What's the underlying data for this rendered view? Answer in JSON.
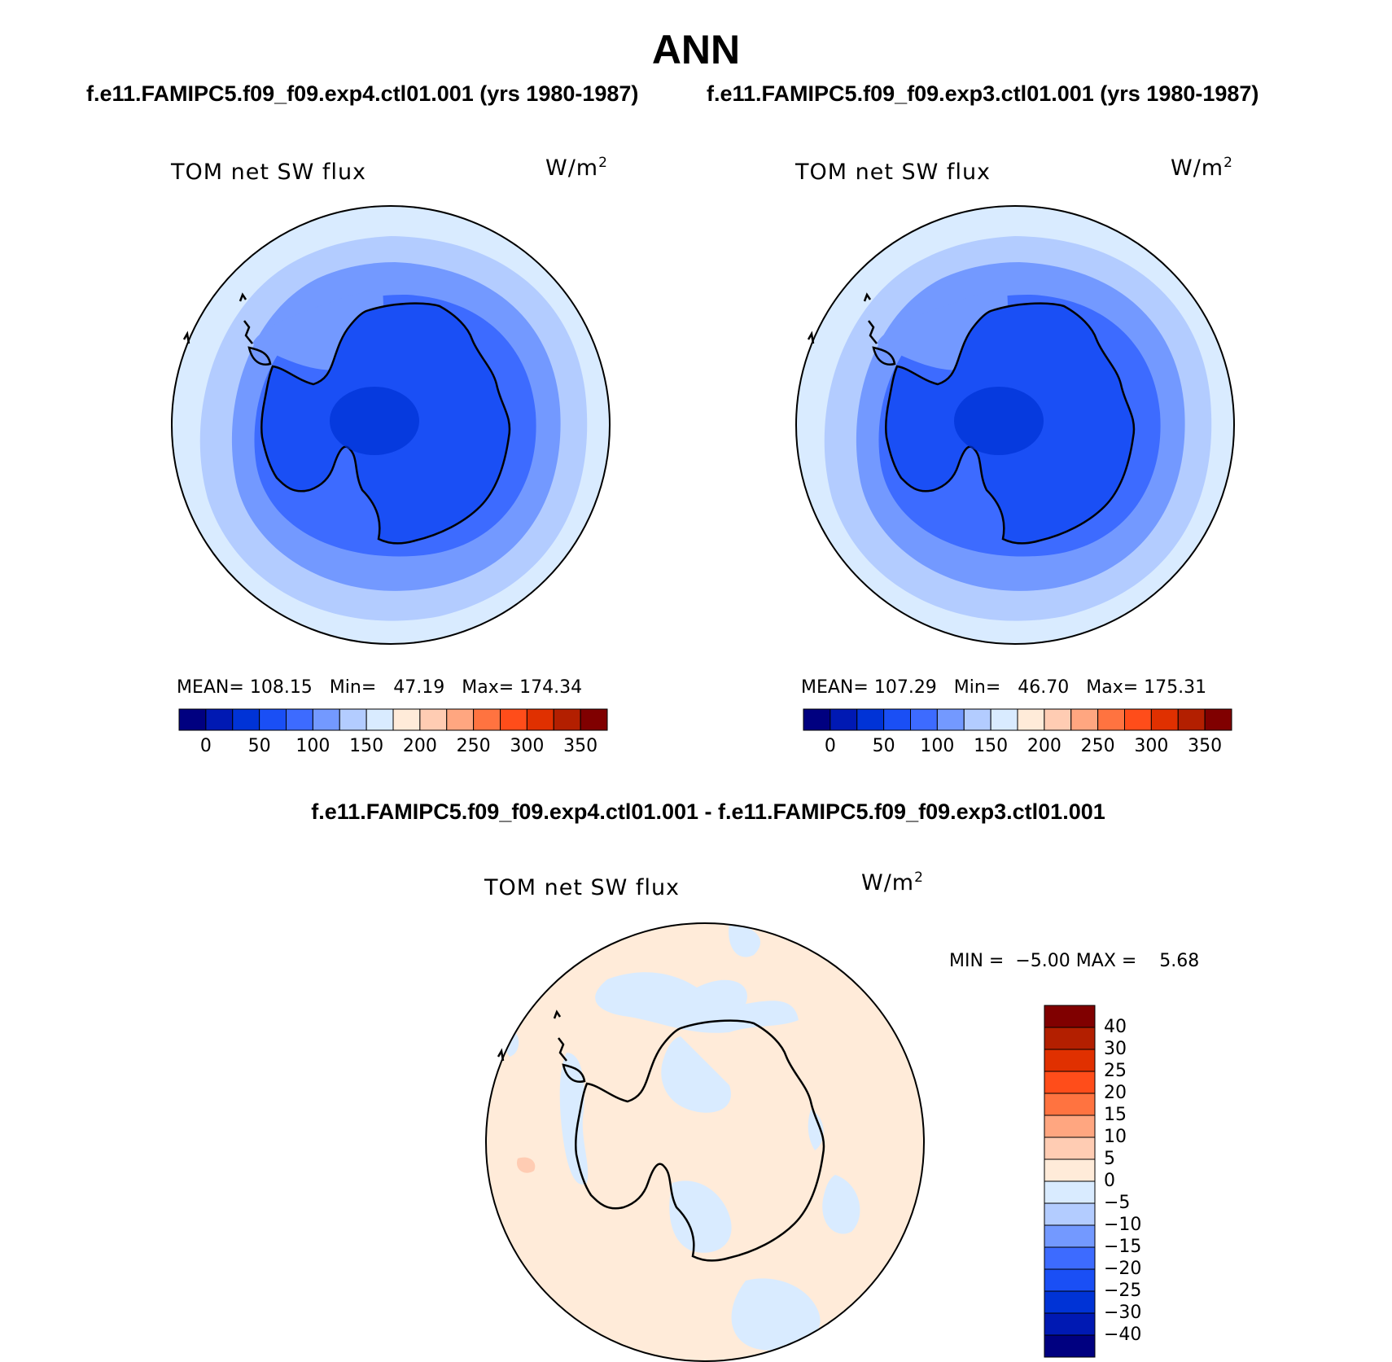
{
  "title": "ANN",
  "panel_top_left": {
    "subtitle": "f.e11.FAMIPC5.f09_f09.exp4.ctl01.001 (yrs 1980-1987)",
    "label": "TOM net SW flux",
    "units_base": "W/m",
    "units_exp": "2",
    "stats": {
      "mean_label": "MEAN=",
      "mean": "108.15",
      "min_label": "Min=",
      "min": "47.19",
      "max_label": "Max=",
      "max": "174.34"
    }
  },
  "panel_top_right": {
    "subtitle": "f.e11.FAMIPC5.f09_f09.exp3.ctl01.001 (yrs 1980-1987)",
    "label": "TOM net SW flux",
    "units_base": "W/m",
    "units_exp": "2",
    "stats": {
      "mean_label": "MEAN=",
      "mean": "107.29",
      "min_label": "Min=",
      "min": "46.70",
      "max_label": "Max=",
      "max": "175.31"
    }
  },
  "panel_diff": {
    "subtitle": "f.e11.FAMIPC5.f09_f09.exp4.ctl01.001 - f.e11.FAMIPC5.f09_f09.exp3.ctl01.001",
    "label": "TOM net SW flux",
    "units_base": "W/m",
    "units_exp": "2",
    "stats": {
      "min_label": "MIN =",
      "min": "−5.00",
      "max_label": "MAX =",
      "max": "5.68"
    }
  },
  "colorbar_abs": {
    "colors": [
      "#000080",
      "#0019b3",
      "#0033d6",
      "#1a4ff5",
      "#3d6bff",
      "#7399ff",
      "#b3ccff",
      "#d9ebff",
      "#ffebd9",
      "#ffccb3",
      "#ffa680",
      "#ff7340",
      "#ff4d1a",
      "#e03000",
      "#b31f00",
      "#800000"
    ],
    "ticks": [
      "0",
      "50",
      "100",
      "150",
      "200",
      "250",
      "300",
      "350"
    ]
  },
  "colorbar_diff": {
    "colors": [
      "#000080",
      "#0019b3",
      "#0033d6",
      "#1a4ff5",
      "#3d6bff",
      "#7399ff",
      "#b3ccff",
      "#d9ebff",
      "#ffebd9",
      "#ffccb3",
      "#ffa680",
      "#ff7340",
      "#ff4d1a",
      "#e03000",
      "#b31f00",
      "#800000"
    ],
    "ticks": [
      "40",
      "30",
      "25",
      "20",
      "15",
      "10",
      "5",
      "0",
      "−5",
      "−10",
      "−15",
      "−20",
      "−25",
      "−30",
      "−40"
    ]
  }
}
